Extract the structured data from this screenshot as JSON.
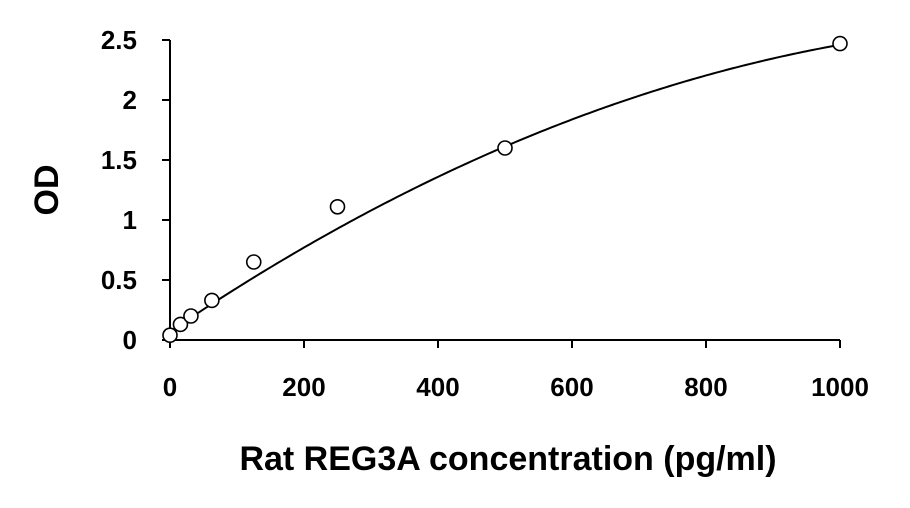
{
  "chart_data": {
    "type": "scatter",
    "xlabel": "Rat REG3A concentration (pg/ml)",
    "ylabel": "OD",
    "xlim": [
      0,
      1000
    ],
    "ylim": [
      0,
      2.5
    ],
    "x_ticks": [
      0,
      200,
      400,
      600,
      800,
      1000
    ],
    "x_tick_labels": [
      "0",
      "200",
      "400",
      "600",
      "800",
      "1000"
    ],
    "y_ticks": [
      0,
      0.5,
      1,
      1.5,
      2,
      2.5
    ],
    "y_tick_labels": [
      "0",
      "0.5",
      "1",
      "1.5",
      "2",
      "2.5"
    ],
    "grid": false,
    "series": [
      {
        "marker": "open-circle",
        "x": [
          0,
          15.6,
          31.25,
          62.5,
          125,
          250,
          500,
          1000
        ],
        "y": [
          0.04,
          0.13,
          0.2,
          0.33,
          0.65,
          1.11,
          1.6,
          2.47
        ]
      }
    ],
    "fit_curve": {
      "type": "polynomial",
      "coefficients": [
        0.07,
        0.00378,
        -1.39e-06
      ]
    }
  }
}
